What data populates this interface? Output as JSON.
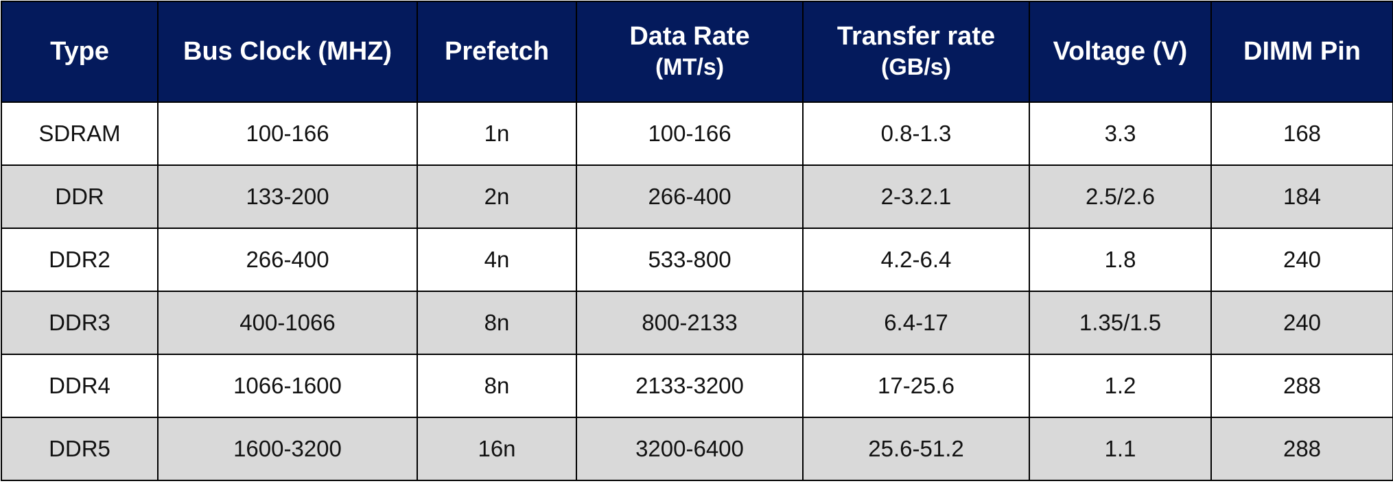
{
  "table": {
    "header": [
      {
        "lines": [
          "Type"
        ]
      },
      {
        "lines": [
          "Bus Clock (MHZ)"
        ]
      },
      {
        "lines": [
          "Prefetch"
        ]
      },
      {
        "lines": [
          "Data Rate",
          "(MT/s)"
        ]
      },
      {
        "lines": [
          "Transfer rate",
          "(GB/s)"
        ]
      },
      {
        "lines": [
          "Voltage (V)"
        ]
      },
      {
        "lines": [
          "DIMM Pin"
        ]
      }
    ],
    "rows": [
      [
        "SDRAM",
        "100-166",
        "1n",
        "100-166",
        "0.8-1.3",
        "3.3",
        "168"
      ],
      [
        "DDR",
        "133-200",
        "2n",
        "266-400",
        "2-3.2.1",
        "2.5/2.6",
        "184"
      ],
      [
        "DDR2",
        "266-400",
        "4n",
        "533-800",
        "4.2-6.4",
        "1.8",
        "240"
      ],
      [
        "DDR3",
        "400-1066",
        "8n",
        "800-2133",
        "6.4-17",
        "1.35/1.5",
        "240"
      ],
      [
        "DDR4",
        "1066-1600",
        "8n",
        "2133-3200",
        "17-25.6",
        "1.2",
        "288"
      ],
      [
        "DDR5",
        "1600-3200",
        "16n",
        "3200-6400",
        "25.6-51.2",
        "1.1",
        "288"
      ]
    ]
  }
}
